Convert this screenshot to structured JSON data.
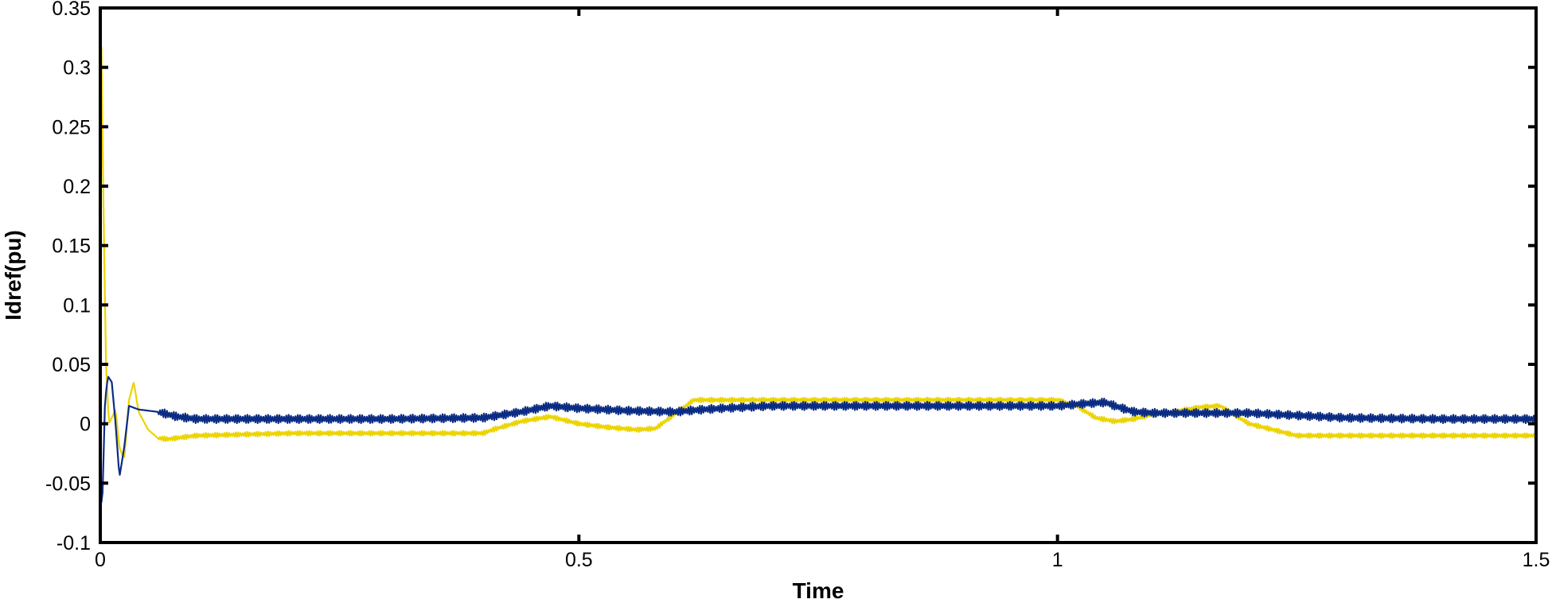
{
  "chart_data": {
    "type": "line",
    "title": "",
    "xlabel": "Time",
    "ylabel": "Idref(pu)",
    "xlim": [
      0,
      1.5
    ],
    "ylim": [
      -0.1,
      0.35
    ],
    "xticks": [
      0,
      0.5,
      1,
      1.5
    ],
    "xtick_labels": [
      "0",
      "0.5",
      "1",
      "1.5"
    ],
    "yticks": [
      -0.1,
      -0.05,
      0,
      0.05,
      0.1,
      0.15,
      0.2,
      0.25,
      0.3,
      0.35
    ],
    "ytick_labels": [
      "-0.1",
      "-0.05",
      "0",
      "0.05",
      "0.1",
      "0.15",
      "0.2",
      "0.25",
      "0.3",
      "0.35"
    ],
    "grid": false,
    "legend": "none",
    "series": [
      {
        "color": "#ecd400",
        "ripple": 0.004,
        "x": [
          0,
          0.001,
          0.003,
          0.006,
          0.009,
          0.012,
          0.016,
          0.02,
          0.025,
          0.03,
          0.035,
          0.04,
          0.05,
          0.06,
          0.07,
          0.1,
          0.2,
          0.3,
          0.4,
          0.41,
          0.44,
          0.47,
          0.5,
          0.53,
          0.56,
          0.58,
          0.6,
          0.62,
          0.65,
          0.7,
          0.8,
          0.9,
          1.0,
          1.02,
          1.04,
          1.06,
          1.08,
          1.1,
          1.12,
          1.15,
          1.17,
          1.2,
          1.25,
          1.3,
          1.4,
          1.5
        ],
        "y": [
          0.0,
          0.33,
          0.2,
          0.05,
          0.0,
          0.005,
          0.012,
          -0.02,
          -0.03,
          0.02,
          0.035,
          0.01,
          -0.005,
          -0.012,
          -0.013,
          -0.01,
          -0.008,
          -0.008,
          -0.008,
          -0.005,
          0.002,
          0.006,
          0.0,
          -0.003,
          -0.005,
          -0.004,
          0.008,
          0.02,
          0.02,
          0.02,
          0.02,
          0.02,
          0.02,
          0.015,
          0.005,
          0.002,
          0.004,
          0.008,
          0.01,
          0.014,
          0.015,
          0.0,
          -0.01,
          -0.01,
          -0.01,
          -0.01
        ]
      },
      {
        "color": "#0b2c84",
        "ripple": 0.007,
        "x": [
          0,
          0.002,
          0.005,
          0.008,
          0.012,
          0.016,
          0.02,
          0.025,
          0.03,
          0.04,
          0.06,
          0.08,
          0.1,
          0.2,
          0.3,
          0.4,
          0.44,
          0.47,
          0.5,
          0.55,
          0.6,
          0.63,
          0.65,
          0.7,
          0.8,
          0.9,
          1.0,
          1.03,
          1.05,
          1.06,
          1.08,
          1.1,
          1.15,
          1.2,
          1.25,
          1.3,
          1.4,
          1.5
        ],
        "y": [
          -0.06,
          -0.07,
          0.02,
          0.04,
          0.035,
          0.0,
          -0.045,
          -0.02,
          0.015,
          0.012,
          0.01,
          0.006,
          0.004,
          0.004,
          0.004,
          0.005,
          0.01,
          0.015,
          0.013,
          0.011,
          0.01,
          0.012,
          0.013,
          0.015,
          0.015,
          0.015,
          0.015,
          0.017,
          0.018,
          0.015,
          0.01,
          0.009,
          0.009,
          0.009,
          0.007,
          0.005,
          0.004,
          0.004
        ]
      }
    ]
  }
}
